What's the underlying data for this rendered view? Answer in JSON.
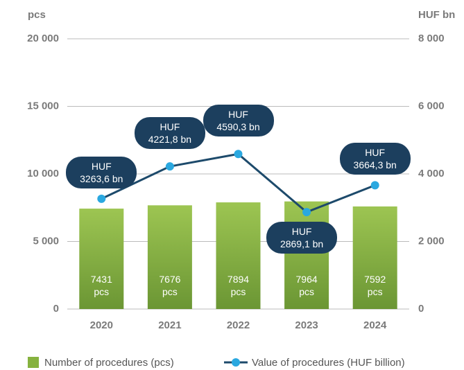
{
  "chart_data": {
    "type": "bar_line",
    "y_axis_label": "pcs",
    "y2_axis_label": "HUF bn",
    "categories": [
      "2020",
      "2021",
      "2022",
      "2023",
      "2024"
    ],
    "series": [
      {
        "name": "Number of procedures (pcs)",
        "type": "bar",
        "color": "#86b23f",
        "values": [
          7431,
          7676,
          7894,
          7964,
          7592
        ],
        "value_labels": [
          "7431 pcs",
          "7676 pcs",
          "7894 pcs",
          "7964 pcs",
          "7592 pcs"
        ]
      },
      {
        "name": "Value of procedures (HUF billion)",
        "type": "line",
        "axis": "y2",
        "color": "#1d4a6b",
        "marker_color": "#2aa8e0",
        "values": [
          3263.6,
          4221.8,
          4590.3,
          2869.1,
          3664.3
        ],
        "value_labels": [
          "HUF 3263,6 bn",
          "HUF 4221,8 bn",
          "HUF 4590,3 bn",
          "HUF 2869,1 bn",
          "HUF 3664,3 bn"
        ]
      }
    ],
    "ylim": [
      0,
      20000
    ],
    "yticks": [
      {
        "value": 0,
        "label": "0"
      },
      {
        "value": 5000,
        "label": "5 000"
      },
      {
        "value": 10000,
        "label": "10 000"
      },
      {
        "value": 15000,
        "label": "15 000"
      },
      {
        "value": 20000,
        "label": "20 000"
      }
    ],
    "y2lim": [
      0,
      8000
    ],
    "y2ticks": [
      {
        "value": 0,
        "label": "0"
      },
      {
        "value": 2000,
        "label": "2 000"
      },
      {
        "value": 4000,
        "label": "4 000"
      },
      {
        "value": 6000,
        "label": "6 000"
      },
      {
        "value": 8000,
        "label": "8 000"
      }
    ],
    "grid": true
  }
}
